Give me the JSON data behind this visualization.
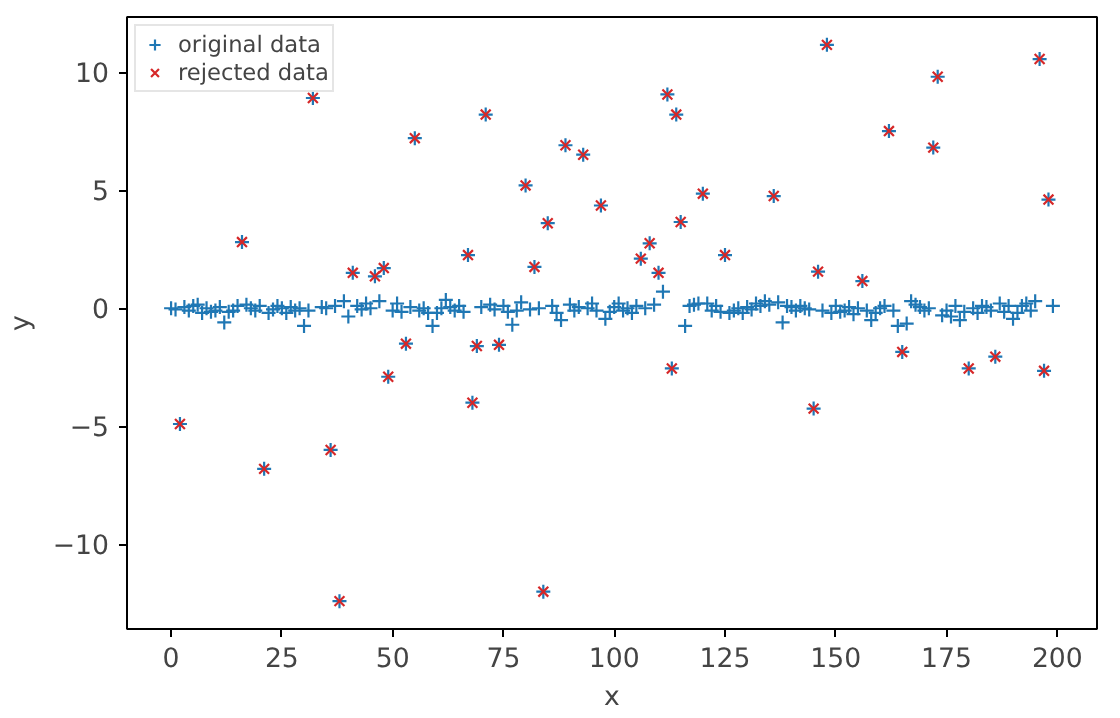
{
  "chart_data": {
    "type": "scatter",
    "xlabel": "x",
    "ylabel": "y",
    "xlim": [
      -9.95,
      208.95
    ],
    "ylim": [
      -13.58,
      12.33
    ],
    "xticks": [
      0,
      25,
      50,
      75,
      100,
      125,
      150,
      175,
      200
    ],
    "yticks": [
      -10,
      -5,
      0,
      5,
      10
    ],
    "grid": false,
    "legend": "top left",
    "series": [
      {
        "name": "original data",
        "color": "#1f77b4",
        "marker": "cross",
        "x": [
          0,
          1,
          2,
          3,
          4,
          5,
          6,
          7,
          8,
          9,
          10,
          11,
          12,
          13,
          14,
          15,
          16,
          17,
          18,
          19,
          20,
          21,
          22,
          23,
          24,
          25,
          26,
          27,
          28,
          29,
          30,
          31,
          32,
          33,
          34,
          35,
          36,
          37,
          38,
          39,
          40,
          41,
          42,
          43,
          44,
          45,
          46,
          47,
          48,
          49,
          50,
          51,
          52,
          53,
          54,
          55,
          56,
          57,
          58,
          59,
          60,
          61,
          62,
          63,
          64,
          65,
          66,
          67,
          68,
          69,
          70,
          71,
          72,
          73,
          74,
          75,
          76,
          77,
          78,
          79,
          80,
          81,
          82,
          83,
          84,
          85,
          86,
          87,
          88,
          89,
          90,
          91,
          92,
          93,
          94,
          95,
          96,
          97,
          98,
          99,
          100,
          101,
          102,
          103,
          104,
          105,
          106,
          107,
          108,
          109,
          110,
          111,
          112,
          113,
          114,
          115,
          116,
          117,
          118,
          119,
          120,
          121,
          122,
          123,
          124,
          125,
          126,
          127,
          128,
          129,
          130,
          131,
          132,
          133,
          134,
          135,
          136,
          137,
          138,
          139,
          140,
          141,
          142,
          143,
          144,
          145,
          146,
          147,
          148,
          149,
          150,
          151,
          152,
          153,
          154,
          155,
          156,
          157,
          158,
          159,
          160,
          161,
          162,
          163,
          164,
          165,
          166,
          167,
          168,
          169,
          170,
          171,
          172,
          173,
          174,
          175,
          176,
          177,
          178,
          179,
          180,
          181,
          182,
          183,
          184,
          185,
          186,
          187,
          188,
          189,
          190,
          191,
          192,
          193,
          194,
          195,
          196,
          197,
          198,
          199
        ],
        "values": [
          0,
          -0.05,
          -4.9,
          0.05,
          -0.1,
          0.1,
          0.15,
          -0.2,
          0.0,
          -0.15,
          -0.1,
          0.05,
          -0.6,
          -0.15,
          -0.1,
          0.1,
          2.8,
          0.15,
          0.0,
          -0.1,
          0.1,
          -6.8,
          -0.2,
          -0.05,
          0.1,
          0.0,
          -0.2,
          0.05,
          -0.1,
          0.0,
          -0.75,
          -0.1,
          8.9,
          null,
          0.05,
          0.0,
          -6.0,
          0.1,
          -12.4,
          0.3,
          -0.35,
          1.5,
          0.1,
          -0.05,
          0.2,
          0.0,
          1.35,
          0.3,
          1.7,
          -2.9,
          -0.1,
          0.2,
          -0.15,
          -1.5,
          0.05,
          7.2,
          -0.1,
          0.0,
          -0.2,
          -0.75,
          -0.2,
          0.0,
          0.35,
          0.05,
          -0.1,
          0.1,
          -0.15,
          2.25,
          -4.0,
          -1.6,
          0.05,
          8.2,
          0.15,
          -0.05,
          -1.55,
          0.1,
          -0.15,
          -0.7,
          -0.1,
          0.25,
          5.2,
          -0.05,
          1.75,
          0.0,
          -12.0,
          3.6,
          0.1,
          -0.2,
          -0.5,
          6.9,
          0.15,
          -0.1,
          0.05,
          6.5,
          0.0,
          0.2,
          -0.1,
          4.35,
          -0.45,
          -0.15,
          0.05,
          0.2,
          -0.1,
          0.0,
          -0.2,
          0.1,
          2.1,
          0.0,
          2.75,
          0.15,
          1.5,
          0.7,
          9.05,
          -2.55,
          8.2,
          3.65,
          -0.75,
          0.1,
          0.15,
          0.2,
          4.85,
          0.2,
          -0.1,
          0.1,
          -0.15,
          2.25,
          -0.2,
          -0.1,
          0.0,
          -0.2,
          0.05,
          -0.05,
          0.2,
          0.1,
          0.3,
          0.15,
          4.75,
          0.25,
          -0.6,
          0.1,
          0.05,
          -0.1,
          0.1,
          0.0,
          -0.05,
          -4.25,
          1.55,
          -0.1,
          11.15,
          -0.2,
          0.1,
          -0.15,
          -0.1,
          0.05,
          -0.25,
          0.0,
          1.15,
          -0.1,
          -0.5,
          -0.2,
          0.0,
          0.1,
          7.5,
          -0.1,
          -0.75,
          -1.85,
          -0.65,
          0.3,
          0.15,
          0.05,
          -0.1,
          0.0,
          6.8,
          9.8,
          -0.3,
          -0.1,
          -0.35,
          0.1,
          -0.5,
          -0.15,
          -2.55,
          0.0,
          -0.2,
          0.1,
          0.05,
          -0.1,
          -2.05,
          0.2,
          -0.15,
          0.1,
          -0.45,
          -0.2,
          0.1,
          0.2,
          -0.1,
          0.3,
          10.55,
          -2.65,
          4.6,
          0.1
        ]
      },
      {
        "name": "rejected data",
        "color": "#d62728",
        "marker": "x",
        "x": [
          2,
          16,
          21,
          32,
          33,
          36,
          38,
          41,
          46,
          48,
          49,
          53,
          55,
          67,
          68,
          69,
          71,
          74,
          80,
          82,
          84,
          85,
          89,
          93,
          97,
          106,
          108,
          110,
          112,
          113,
          114,
          115,
          120,
          125,
          136,
          145,
          146,
          148,
          156,
          162,
          165,
          172,
          173,
          180,
          186,
          196,
          197,
          198
        ],
        "values": [
          -4.9,
          2.8,
          -6.8,
          8.9,
          null,
          -6.0,
          -12.4,
          1.5,
          1.35,
          1.7,
          -2.9,
          -1.5,
          7.2,
          2.25,
          -4.0,
          -1.6,
          8.2,
          -1.55,
          5.2,
          1.75,
          -12.0,
          3.6,
          6.9,
          6.5,
          4.35,
          2.1,
          2.75,
          1.5,
          9.05,
          -2.55,
          8.2,
          3.65,
          4.85,
          2.25,
          4.75,
          -4.25,
          1.55,
          11.15,
          1.15,
          7.5,
          -1.85,
          6.8,
          9.8,
          -2.55,
          -2.05,
          10.55,
          -2.65,
          4.6
        ]
      }
    ]
  }
}
